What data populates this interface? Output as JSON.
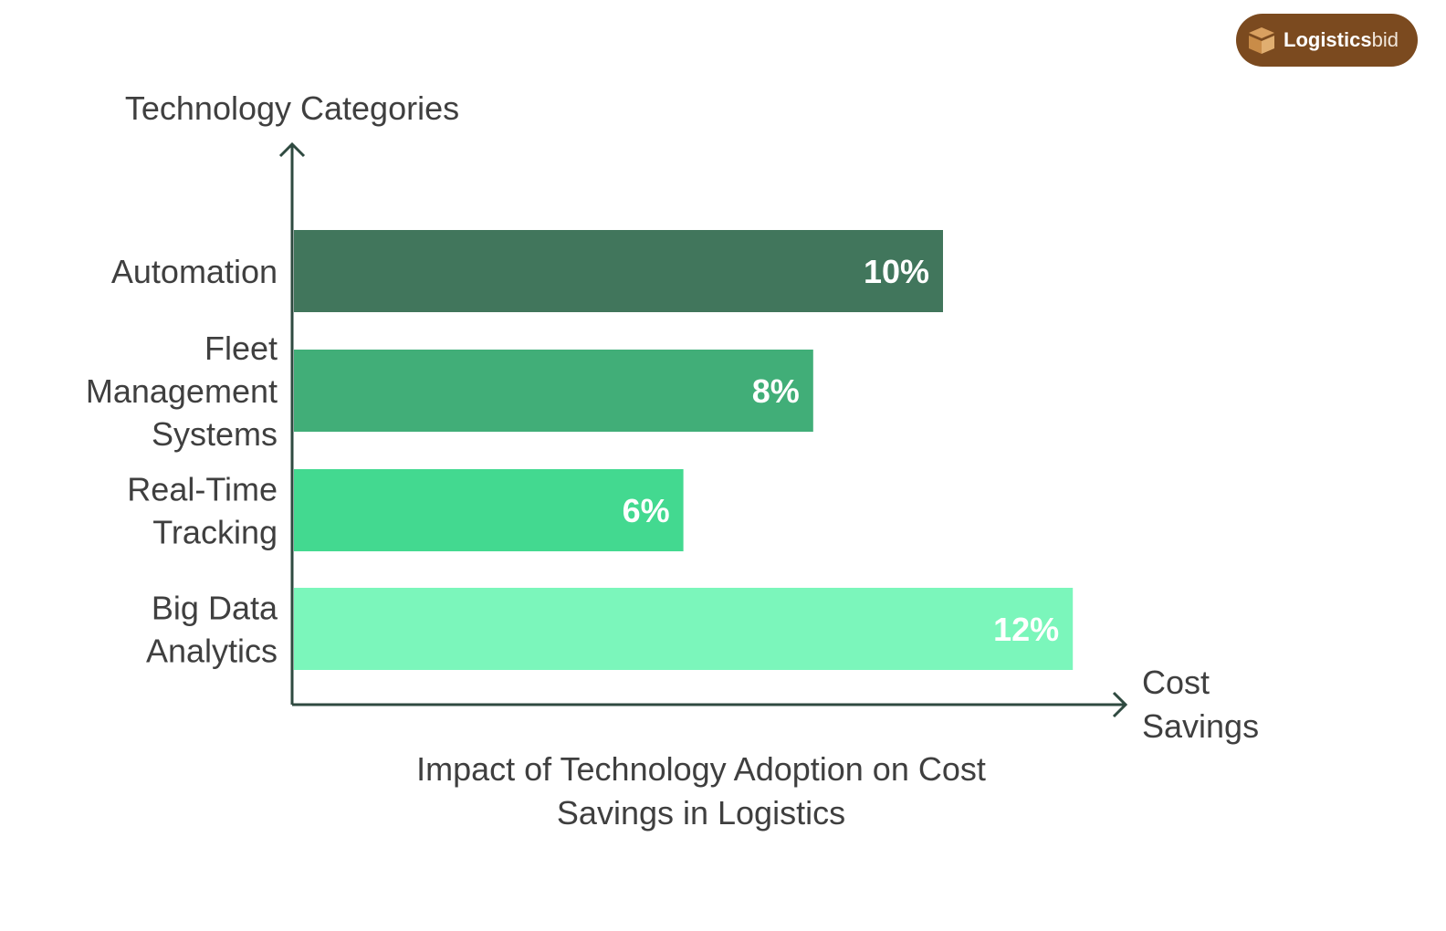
{
  "logo": {
    "bold": "Logistics",
    "light": "bid",
    "color": "#7b4a1f"
  },
  "chart_data": {
    "type": "bar",
    "orientation": "horizontal",
    "title": "Impact of Technology Adoption on Cost Savings in Logistics",
    "ylabel": "Technology Categories",
    "xlabel": "Cost Savings",
    "categories": [
      "Automation",
      "Fleet Management Systems",
      "Real-Time Tracking",
      "Big Data Analytics"
    ],
    "values": [
      10,
      8,
      6,
      12
    ],
    "data_labels": [
      "10%",
      "8%",
      "6%",
      "12%"
    ],
    "colors": [
      "#41765c",
      "#41ae78",
      "#43d990",
      "#7bf6bb"
    ],
    "unit": "%",
    "grid": false,
    "legend": "none"
  }
}
